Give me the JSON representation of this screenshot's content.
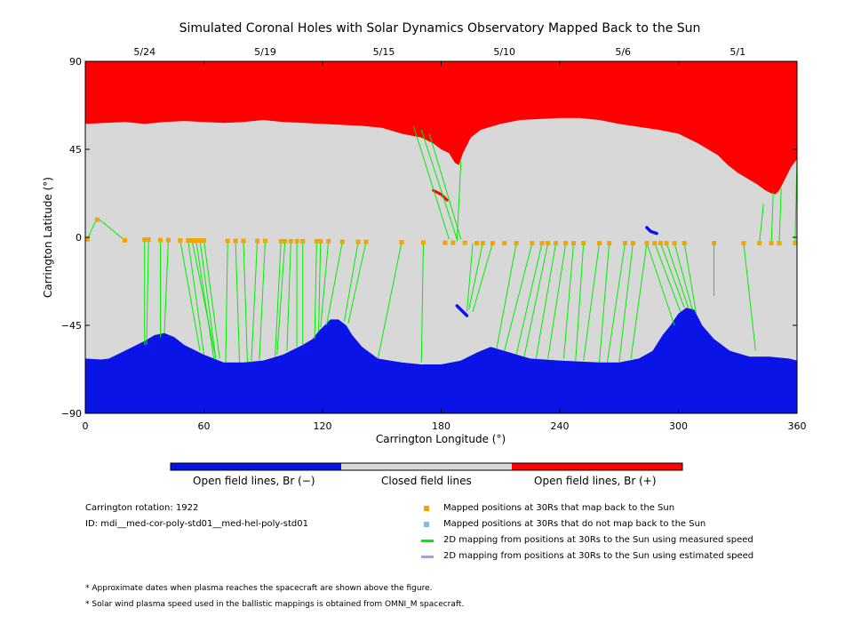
{
  "title": "Simulated Coronal Holes with Solar Dynamics Observatory Mapped Back to the Sun",
  "colors": {
    "open_negative": "#0a14e6",
    "closed": "#d8d8d8",
    "open_positive": "#ff0000",
    "mapped_marker": "#f2a500",
    "unmapped_marker": "#7fb8ee",
    "measured_line": "#00ee00",
    "estimated_line": "#c090e8"
  },
  "colorbar": {
    "labels": [
      "Open field lines, Br (−)",
      "Closed field lines",
      "Open field lines, Br (+)"
    ]
  },
  "info": {
    "rotation": "Carrington rotation: 1922",
    "id": "ID: mdi__med-cor-poly-std01__med-hel-poly-std01"
  },
  "legend": [
    {
      "label": "Mapped positions at 30Rs that map back to the Sun",
      "marker": "square",
      "color": "#f2a500"
    },
    {
      "label": "Mapped positions at 30Rs that do not map back to the Sun",
      "marker": "square",
      "color": "#7fb8ee"
    },
    {
      "label": "2D mapping from positions at 30Rs to the Sun using measured speed",
      "marker": "line",
      "color": "#00ee00"
    },
    {
      "label": "2D mapping from positions at 30Rs to the Sun using estimated speed",
      "marker": "line",
      "color": "#c090e8"
    }
  ],
  "notes": [
    "* Approximate dates when plasma reaches the spacecraft are shown above the figure.",
    "* Solar wind plasma speed used in the ballistic mappings is obtained from OMNI_M spacecraft."
  ],
  "chart_data": {
    "type": "scatter",
    "title": "Simulated Coronal Holes with Solar Dynamics Observatory Mapped Back to the Sun",
    "xlabel": "Carrington Longitude (°)",
    "ylabel": "Carrington Latitude (°)",
    "xlim": [
      0,
      360
    ],
    "ylim": [
      -90,
      90
    ],
    "xticks": [
      0,
      60,
      120,
      180,
      240,
      300,
      360
    ],
    "yticks": [
      -90,
      -45,
      0,
      45,
      90
    ],
    "top_axis": {
      "label_positions": [
        {
          "x": 30,
          "label": "5/24"
        },
        {
          "x": 91,
          "label": "5/19"
        },
        {
          "x": 151,
          "label": "5/15"
        },
        {
          "x": 212,
          "label": "5/10"
        },
        {
          "x": 272,
          "label": "5/6"
        },
        {
          "x": 330,
          "label": "5/1"
        }
      ]
    },
    "north_boundary": [
      [
        0,
        58
      ],
      [
        10,
        58.5
      ],
      [
        20,
        59
      ],
      [
        30,
        58
      ],
      [
        40,
        59
      ],
      [
        50,
        59.5
      ],
      [
        60,
        59
      ],
      [
        70,
        58.5
      ],
      [
        80,
        59
      ],
      [
        90,
        60
      ],
      [
        100,
        59
      ],
      [
        110,
        58.5
      ],
      [
        120,
        58
      ],
      [
        130,
        57.5
      ],
      [
        140,
        57
      ],
      [
        150,
        56
      ],
      [
        160,
        53
      ],
      [
        170,
        51
      ],
      [
        176,
        48
      ],
      [
        180,
        45
      ],
      [
        184,
        43
      ],
      [
        187,
        38
      ],
      [
        189,
        37
      ],
      [
        191,
        43
      ],
      [
        195,
        51
      ],
      [
        200,
        55
      ],
      [
        210,
        58
      ],
      [
        220,
        60
      ],
      [
        230,
        60.5
      ],
      [
        240,
        61
      ],
      [
        250,
        61
      ],
      [
        260,
        60
      ],
      [
        270,
        58
      ],
      [
        280,
        56.5
      ],
      [
        290,
        55
      ],
      [
        300,
        53
      ],
      [
        310,
        48
      ],
      [
        320,
        42
      ],
      [
        325,
        37
      ],
      [
        330,
        33
      ],
      [
        335,
        30
      ],
      [
        340,
        27
      ],
      [
        344,
        24
      ],
      [
        347,
        22.5
      ],
      [
        349,
        22
      ],
      [
        351,
        24
      ],
      [
        354,
        30
      ],
      [
        357,
        36
      ],
      [
        360,
        40
      ]
    ],
    "south_boundary": [
      [
        0,
        -62
      ],
      [
        8,
        -62.5
      ],
      [
        12,
        -62
      ],
      [
        20,
        -58
      ],
      [
        30,
        -53
      ],
      [
        35,
        -50
      ],
      [
        40,
        -49
      ],
      [
        45,
        -51
      ],
      [
        50,
        -55
      ],
      [
        60,
        -60
      ],
      [
        70,
        -64
      ],
      [
        80,
        -64
      ],
      [
        90,
        -63
      ],
      [
        100,
        -60
      ],
      [
        110,
        -55
      ],
      [
        115,
        -52
      ],
      [
        118,
        -48
      ],
      [
        121,
        -45
      ],
      [
        124,
        -42
      ],
      [
        128,
        -42
      ],
      [
        132,
        -45
      ],
      [
        135,
        -50
      ],
      [
        140,
        -56
      ],
      [
        148,
        -62
      ],
      [
        160,
        -64
      ],
      [
        170,
        -65
      ],
      [
        180,
        -65
      ],
      [
        190,
        -63
      ],
      [
        198,
        -59
      ],
      [
        205,
        -56
      ],
      [
        215,
        -59
      ],
      [
        225,
        -62
      ],
      [
        240,
        -63
      ],
      [
        260,
        -64
      ],
      [
        270,
        -64
      ],
      [
        280,
        -62
      ],
      [
        287,
        -58
      ],
      [
        292,
        -50
      ],
      [
        296,
        -45
      ],
      [
        300,
        -39
      ],
      [
        304,
        -36
      ],
      [
        308,
        -37
      ],
      [
        312,
        -45
      ],
      [
        318,
        -52
      ],
      [
        326,
        -58
      ],
      [
        336,
        -61
      ],
      [
        346,
        -61
      ],
      [
        356,
        -62
      ],
      [
        360,
        -63
      ]
    ],
    "mapped_points": [
      [
        1,
        -1
      ],
      [
        6,
        9
      ],
      [
        20,
        -1.5
      ],
      [
        30,
        -1.2
      ],
      [
        32,
        -1.2
      ],
      [
        38,
        -1.4
      ],
      [
        42,
        -1.4
      ],
      [
        48,
        -1.6
      ],
      [
        52,
        -1.6
      ],
      [
        54,
        -1.6
      ],
      [
        56,
        -1.6
      ],
      [
        58,
        -1.6
      ],
      [
        60,
        -1.6
      ],
      [
        72,
        -1.8
      ],
      [
        76,
        -1.8
      ],
      [
        80,
        -1.8
      ],
      [
        87,
        -1.8
      ],
      [
        91,
        -1.8
      ],
      [
        99,
        -2
      ],
      [
        101,
        -2
      ],
      [
        104,
        -2
      ],
      [
        107,
        -2
      ],
      [
        110,
        -2
      ],
      [
        117,
        -2
      ],
      [
        119,
        -2
      ],
      [
        123,
        -2
      ],
      [
        130,
        -2.3
      ],
      [
        138,
        -2.3
      ],
      [
        142,
        -2.3
      ],
      [
        160,
        -2.5
      ],
      [
        171,
        -2.7
      ],
      [
        182,
        -2.8
      ],
      [
        186,
        -2.8
      ],
      [
        192,
        -2.8
      ],
      [
        198,
        -3
      ],
      [
        201,
        -3
      ],
      [
        206,
        -3
      ],
      [
        212,
        -3
      ],
      [
        218,
        -3
      ],
      [
        226,
        -3
      ],
      [
        231,
        -3
      ],
      [
        234,
        -3
      ],
      [
        238,
        -3
      ],
      [
        243,
        -3
      ],
      [
        247,
        -3
      ],
      [
        252,
        -3
      ],
      [
        260,
        -3
      ],
      [
        265,
        -3
      ],
      [
        273,
        -3
      ],
      [
        277,
        -3
      ],
      [
        284,
        -3
      ],
      [
        288,
        -3
      ],
      [
        291,
        -3
      ],
      [
        294,
        -3
      ],
      [
        298,
        -3
      ],
      [
        303,
        -3
      ],
      [
        318,
        -3
      ],
      [
        333,
        -3
      ],
      [
        341,
        -3
      ],
      [
        347,
        -3
      ],
      [
        351,
        -3
      ],
      [
        359,
        -3
      ]
    ],
    "mapping_lines": [
      [
        [
          1,
          -1
        ],
        [
          6,
          10
        ]
      ],
      [
        [
          6,
          10
        ],
        [
          20,
          -1.5
        ]
      ],
      [
        [
          30,
          -1.2
        ],
        [
          30,
          -55
        ]
      ],
      [
        [
          32,
          -1.2
        ],
        [
          31,
          -55
        ]
      ],
      [
        [
          38,
          -1.4
        ],
        [
          38,
          -51
        ]
      ],
      [
        [
          42,
          -1.4
        ],
        [
          40,
          -49
        ]
      ],
      [
        [
          48,
          -1.6
        ],
        [
          58,
          -58
        ]
      ],
      [
        [
          52,
          -1.6
        ],
        [
          60,
          -60
        ]
      ],
      [
        [
          54,
          -1.6
        ],
        [
          66,
          -62
        ]
      ],
      [
        [
          56,
          -1.6
        ],
        [
          65,
          -62
        ]
      ],
      [
        [
          58,
          -1.6
        ],
        [
          66,
          -62
        ]
      ],
      [
        [
          60,
          -1.6
        ],
        [
          68,
          -62
        ]
      ],
      [
        [
          72,
          -1.8
        ],
        [
          71,
          -64
        ]
      ],
      [
        [
          76,
          -1.8
        ],
        [
          78,
          -64
        ]
      ],
      [
        [
          80,
          -1.8
        ],
        [
          82,
          -64
        ]
      ],
      [
        [
          87,
          -1.8
        ],
        [
          84,
          -64
        ]
      ],
      [
        [
          91,
          -1.8
        ],
        [
          88,
          -63
        ]
      ],
      [
        [
          99,
          -2
        ],
        [
          96,
          -61
        ]
      ],
      [
        [
          101,
          -2
        ],
        [
          97,
          -60
        ]
      ],
      [
        [
          104,
          -2
        ],
        [
          102,
          -58
        ]
      ],
      [
        [
          107,
          -2
        ],
        [
          107,
          -56
        ]
      ],
      [
        [
          110,
          -2
        ],
        [
          110,
          -55
        ]
      ],
      [
        [
          117,
          -2
        ],
        [
          116,
          -52
        ]
      ],
      [
        [
          119,
          -2
        ],
        [
          118,
          -48
        ]
      ],
      [
        [
          123,
          -2
        ],
        [
          119,
          -46
        ]
      ],
      [
        [
          130,
          -2.3
        ],
        [
          122,
          -45
        ]
      ],
      [
        [
          138,
          -2.3
        ],
        [
          131,
          -43
        ]
      ],
      [
        [
          142,
          -2.3
        ],
        [
          133,
          -44
        ]
      ],
      [
        [
          160,
          -2.5
        ],
        [
          148,
          -62
        ]
      ],
      [
        [
          171,
          -2.7
        ],
        [
          170,
          -64
        ]
      ],
      [
        [
          166,
          57
        ],
        [
          184,
          -1
        ]
      ],
      [
        [
          170,
          55
        ],
        [
          188,
          -1
        ]
      ],
      [
        [
          174,
          53
        ],
        [
          190,
          -1
        ]
      ],
      [
        [
          190,
          39
        ],
        [
          188,
          -2
        ]
      ],
      [
        [
          196,
          -3
        ],
        [
          193,
          -38
        ]
      ],
      [
        [
          201,
          -3
        ],
        [
          194,
          -37
        ]
      ],
      [
        [
          206,
          -3
        ],
        [
          196,
          -38
        ]
      ],
      [
        [
          218,
          -3
        ],
        [
          208,
          -57
        ]
      ],
      [
        [
          226,
          -3
        ],
        [
          212,
          -58
        ]
      ],
      [
        [
          231,
          -3
        ],
        [
          218,
          -60
        ]
      ],
      [
        [
          234,
          -3
        ],
        [
          222,
          -61
        ]
      ],
      [
        [
          238,
          -3
        ],
        [
          228,
          -62
        ]
      ],
      [
        [
          243,
          -3
        ],
        [
          234,
          -62
        ]
      ],
      [
        [
          247,
          -3
        ],
        [
          242,
          -62
        ]
      ],
      [
        [
          252,
          -3
        ],
        [
          248,
          -63
        ]
      ],
      [
        [
          260,
          -3
        ],
        [
          252,
          -63
        ]
      ],
      [
        [
          265,
          -3
        ],
        [
          260,
          -64
        ]
      ],
      [
        [
          273,
          -3
        ],
        [
          264,
          -64
        ]
      ],
      [
        [
          277,
          -3
        ],
        [
          270,
          -64
        ]
      ],
      [
        [
          284,
          -3
        ],
        [
          276,
          -62
        ]
      ],
      [
        [
          284,
          -3
        ],
        [
          298,
          -45
        ]
      ],
      [
        [
          288,
          -3
        ],
        [
          301,
          -38
        ]
      ],
      [
        [
          291,
          -3
        ],
        [
          303,
          -36
        ]
      ],
      [
        [
          294,
          -3
        ],
        [
          305,
          -36
        ]
      ],
      [
        [
          298,
          -3
        ],
        [
          307,
          -37
        ]
      ],
      [
        [
          303,
          -3
        ],
        [
          309,
          -39
        ]
      ],
      [
        [
          318,
          -3
        ],
        [
          318,
          -30
        ]
      ],
      [
        [
          333,
          -3
        ],
        [
          339,
          -58
        ]
      ],
      [
        [
          341,
          -3
        ],
        [
          343,
          17
        ]
      ],
      [
        [
          347,
          -3
        ],
        [
          348,
          23
        ]
      ],
      [
        [
          351,
          -3
        ],
        [
          352,
          25
        ]
      ],
      [
        [
          359,
          -3
        ],
        [
          360,
          40
        ]
      ]
    ],
    "features": {
      "small_neg_holes": [
        [
          [
            284,
            5
          ],
          [
            286,
            3
          ],
          [
            289,
            2
          ]
        ],
        [
          [
            188,
            -35
          ],
          [
            191,
            -38
          ],
          [
            193,
            -40
          ]
        ]
      ],
      "small_pos_holes": [
        [
          [
            176,
            24
          ],
          [
            180,
            22
          ],
          [
            183,
            19
          ]
        ]
      ]
    }
  }
}
